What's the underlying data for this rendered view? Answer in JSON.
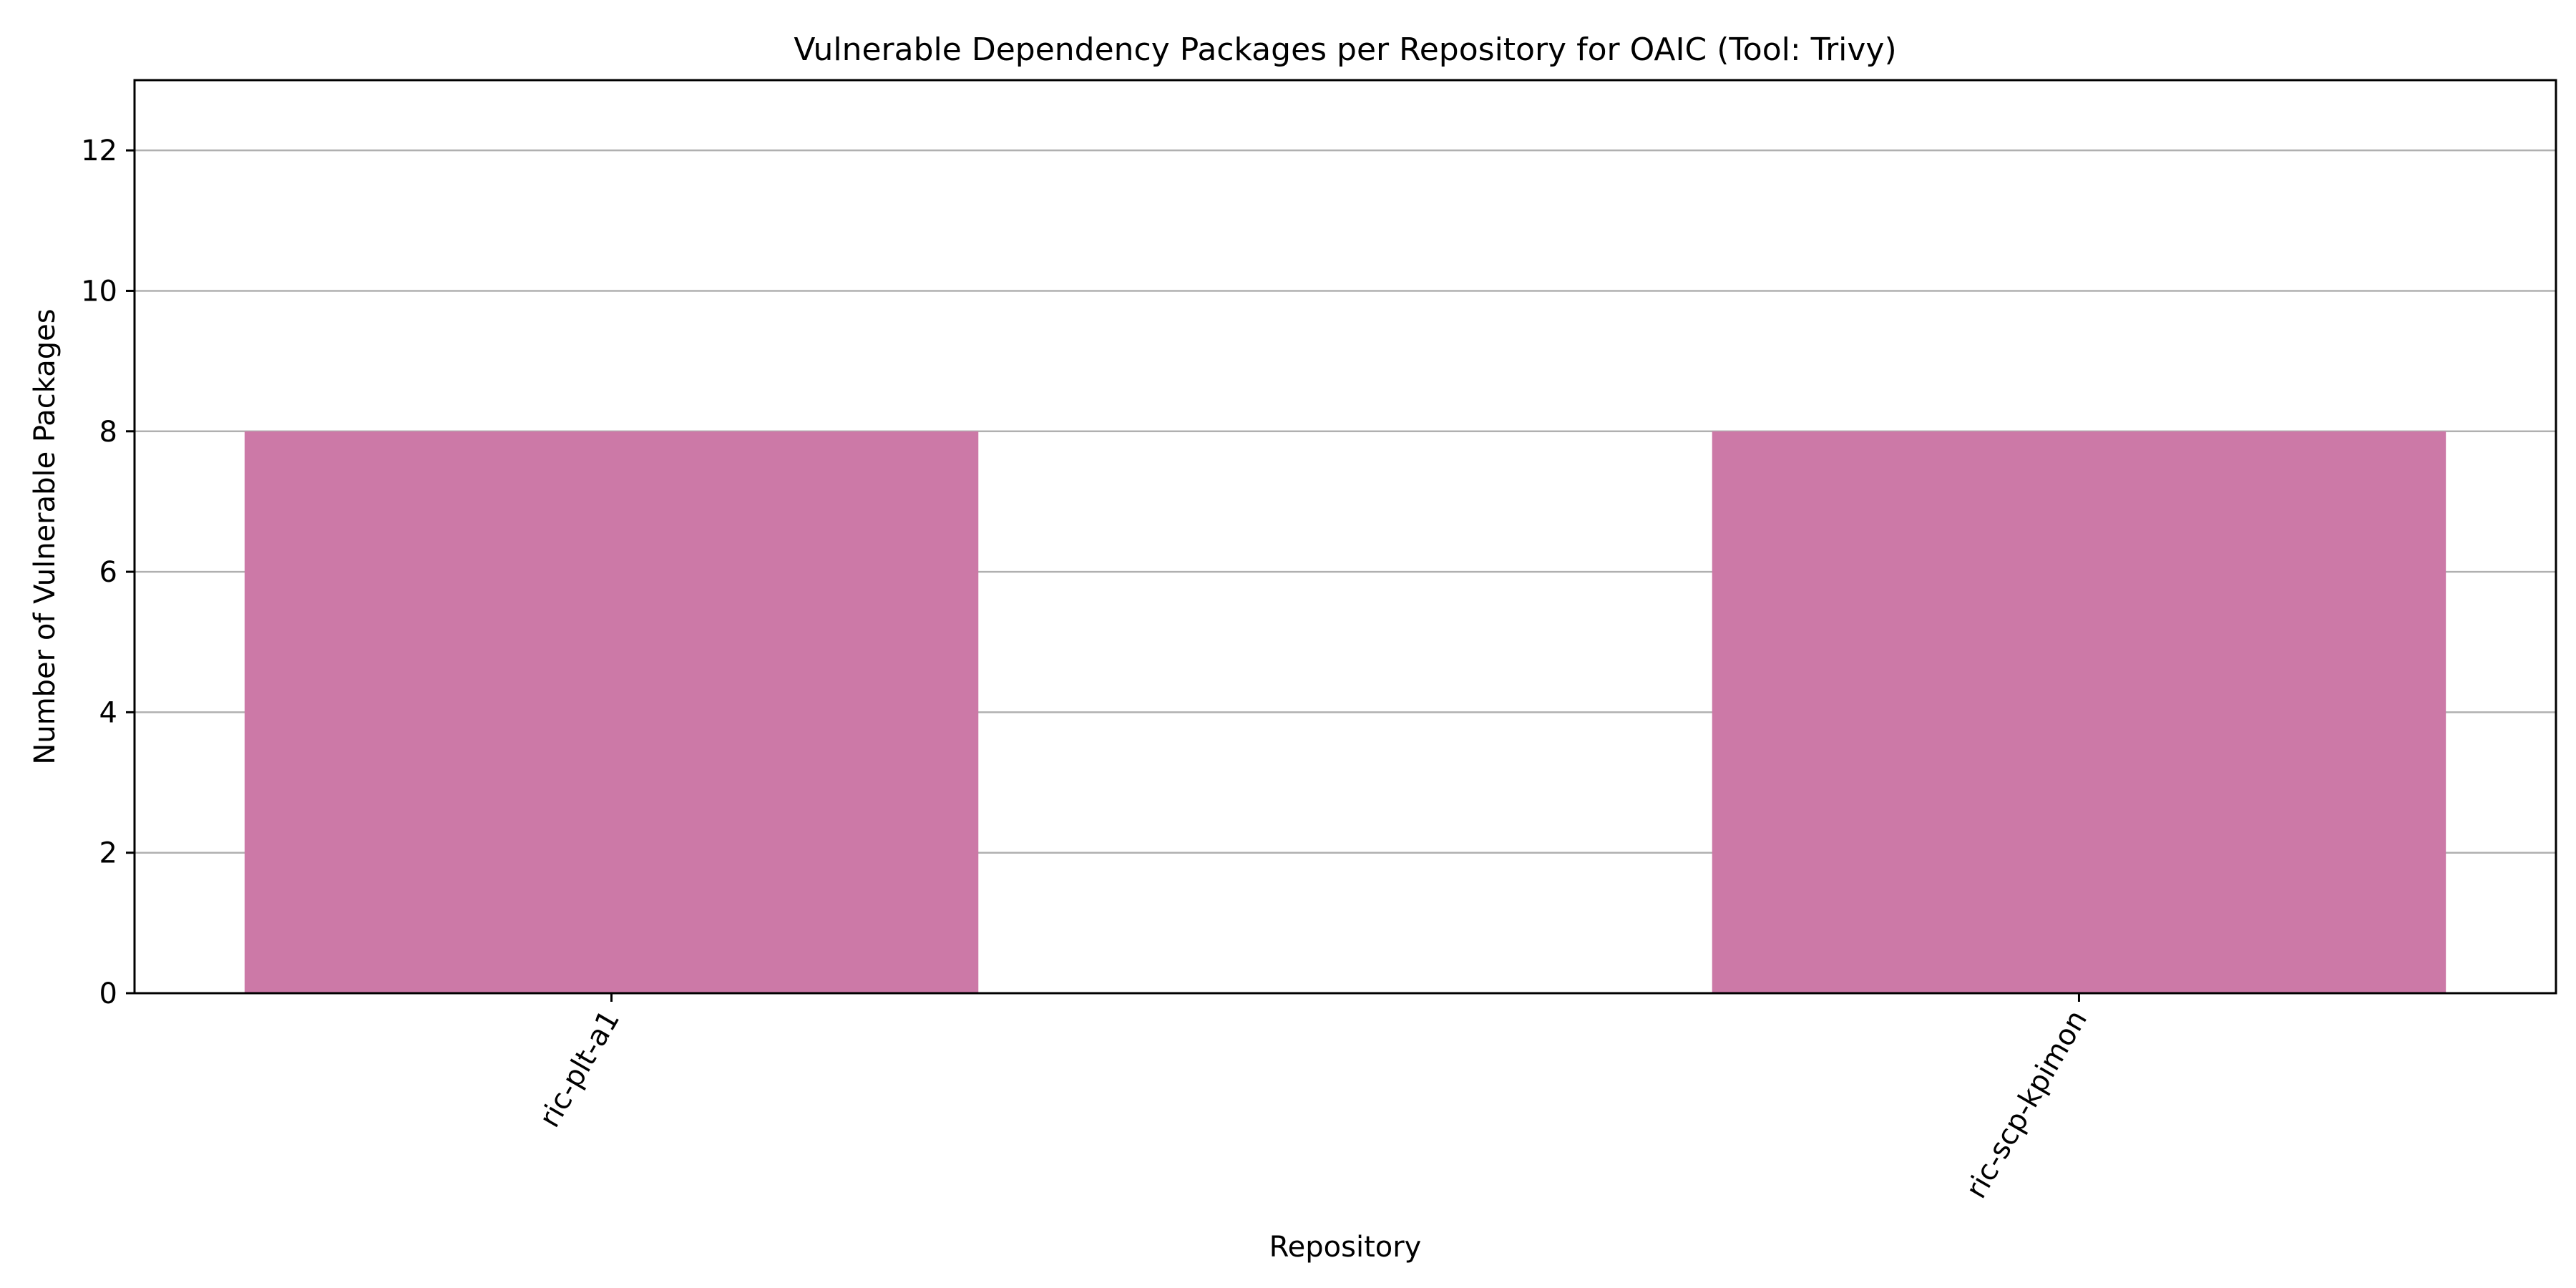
{
  "chart_data": {
    "type": "bar",
    "title": "Vulnerable Dependency Packages per Repository for OAIC (Tool: Trivy)",
    "xlabel": "Repository",
    "ylabel": "Number of Vulnerable Packages",
    "categories": [
      "ric-plt-a1",
      "ric-scp-kpimon"
    ],
    "values": [
      8,
      8
    ],
    "ylim": [
      0,
      13
    ],
    "yticks": [
      0,
      2,
      4,
      6,
      8,
      10,
      12
    ],
    "bar_color": "#cc79a7",
    "grid": "y-axis only",
    "legend": "none"
  }
}
